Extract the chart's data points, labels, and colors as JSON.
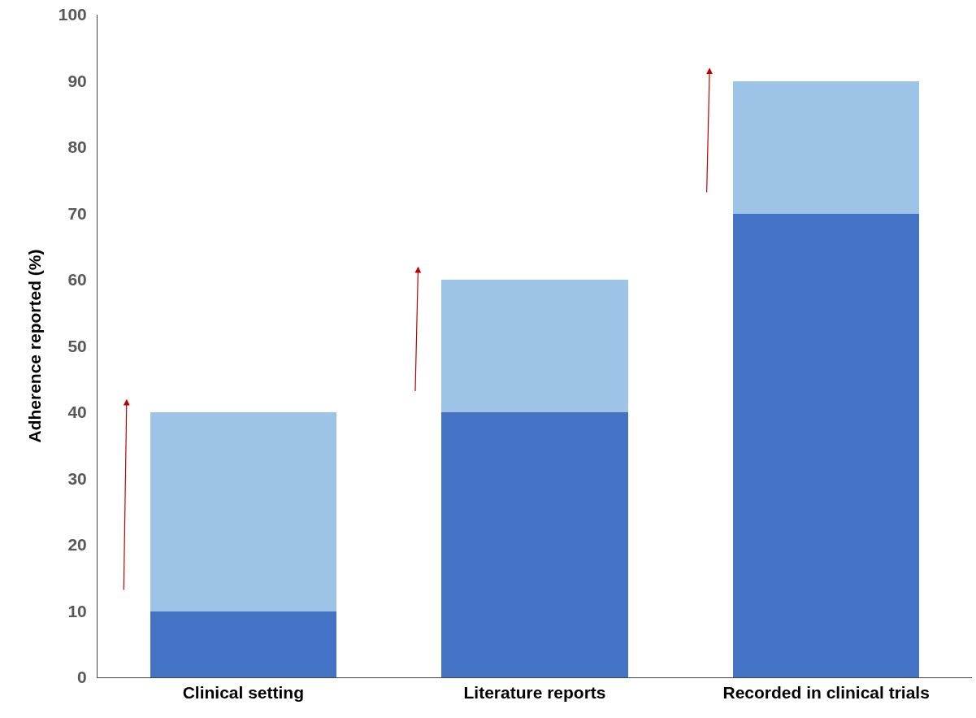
{
  "chart_data": {
    "type": "bar",
    "stacked": true,
    "ylabel": "Adherence reported (%)",
    "categories": [
      "Clinical setting",
      "Literature reports",
      "Recorded in clinical trials"
    ],
    "series": [
      {
        "color": "#4472c4",
        "values": [
          10,
          40,
          70
        ]
      },
      {
        "color": "#9dc3e6",
        "values": [
          30,
          20,
          20
        ]
      }
    ],
    "ylim": [
      0,
      100
    ],
    "yticks": [
      0,
      10,
      20,
      30,
      40,
      50,
      60,
      70,
      80,
      90,
      100
    ]
  }
}
